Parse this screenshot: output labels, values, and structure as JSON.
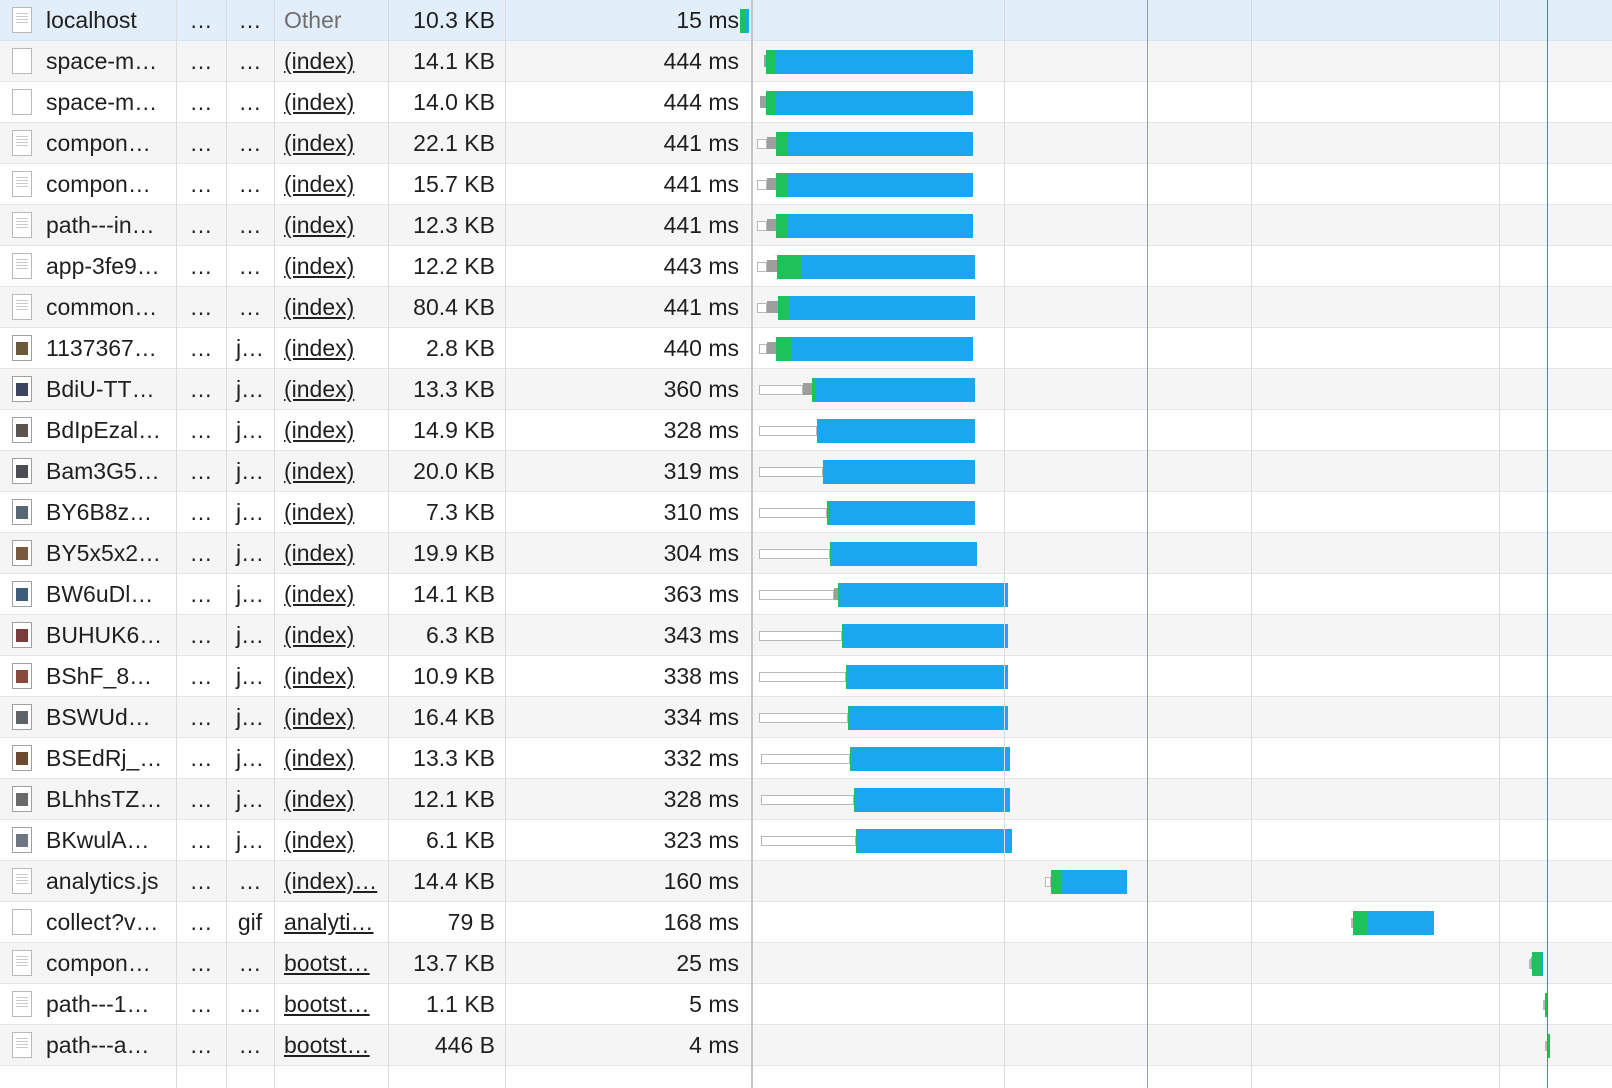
{
  "colors": {
    "waiting_ttfb": "#1fc15a",
    "content_download": "#1aa7ef",
    "stalled": "#9e9e9e",
    "queued_outline": "#b8b8b8",
    "dom_content_loaded_line": "#8f93f5",
    "load_line": "#e44a4a",
    "selected_row": "#e3eefb",
    "alt_row": "#f5f5f5"
  },
  "requests": [
    {
      "name": "localhost",
      "status": "…",
      "type": "…",
      "initiator": "Other",
      "initiator_link": false,
      "size": "10.3 KB",
      "time": "15 ms",
      "icon": "document-icon",
      "selected": true
    },
    {
      "name": "space-m…",
      "status": "…",
      "type": "…",
      "initiator": "(index)",
      "initiator_link": true,
      "size": "14.1 KB",
      "time": "444 ms",
      "icon": "blank-file-icon",
      "selected": false
    },
    {
      "name": "space-m…",
      "status": "…",
      "type": "…",
      "initiator": "(index)",
      "initiator_link": true,
      "size": "14.0 KB",
      "time": "444 ms",
      "icon": "blank-file-icon",
      "selected": false
    },
    {
      "name": "compon…",
      "status": "…",
      "type": "…",
      "initiator": "(index)",
      "initiator_link": true,
      "size": "22.1 KB",
      "time": "441 ms",
      "icon": "document-icon",
      "selected": false
    },
    {
      "name": "compon…",
      "status": "…",
      "type": "…",
      "initiator": "(index)",
      "initiator_link": true,
      "size": "15.7 KB",
      "time": "441 ms",
      "icon": "document-icon",
      "selected": false
    },
    {
      "name": "path---in…",
      "status": "…",
      "type": "…",
      "initiator": "(index)",
      "initiator_link": true,
      "size": "12.3 KB",
      "time": "441 ms",
      "icon": "document-icon",
      "selected": false
    },
    {
      "name": "app-3fe9…",
      "status": "…",
      "type": "…",
      "initiator": "(index)",
      "initiator_link": true,
      "size": "12.2 KB",
      "time": "443 ms",
      "icon": "document-icon",
      "selected": false
    },
    {
      "name": "common…",
      "status": "…",
      "type": "…",
      "initiator": "(index)",
      "initiator_link": true,
      "size": "80.4 KB",
      "time": "441 ms",
      "icon": "document-icon",
      "selected": false
    },
    {
      "name": "1137367…",
      "status": "…",
      "type": "j…",
      "initiator": "(index)",
      "initiator_link": true,
      "size": "2.8 KB",
      "time": "440 ms",
      "icon": "image-thumbnail-icon",
      "selected": false
    },
    {
      "name": "BdiU-TT…",
      "status": "…",
      "type": "j…",
      "initiator": "(index)",
      "initiator_link": true,
      "size": "13.3 KB",
      "time": "360 ms",
      "icon": "image-thumbnail-icon",
      "selected": false
    },
    {
      "name": "BdIpEzal…",
      "status": "…",
      "type": "j…",
      "initiator": "(index)",
      "initiator_link": true,
      "size": "14.9 KB",
      "time": "328 ms",
      "icon": "image-thumbnail-icon",
      "selected": false
    },
    {
      "name": "Bam3G5…",
      "status": "…",
      "type": "j…",
      "initiator": "(index)",
      "initiator_link": true,
      "size": "20.0 KB",
      "time": "319 ms",
      "icon": "image-thumbnail-icon",
      "selected": false
    },
    {
      "name": "BY6B8z…",
      "status": "…",
      "type": "j…",
      "initiator": "(index)",
      "initiator_link": true,
      "size": "7.3 KB",
      "time": "310 ms",
      "icon": "image-thumbnail-icon",
      "selected": false
    },
    {
      "name": "BY5x5x2…",
      "status": "…",
      "type": "j…",
      "initiator": "(index)",
      "initiator_link": true,
      "size": "19.9 KB",
      "time": "304 ms",
      "icon": "image-thumbnail-icon",
      "selected": false
    },
    {
      "name": "BW6uDl…",
      "status": "…",
      "type": "j…",
      "initiator": "(index)",
      "initiator_link": true,
      "size": "14.1 KB",
      "time": "363 ms",
      "icon": "image-thumbnail-icon",
      "selected": false
    },
    {
      "name": "BUHUK6…",
      "status": "…",
      "type": "j…",
      "initiator": "(index)",
      "initiator_link": true,
      "size": "6.3 KB",
      "time": "343 ms",
      "icon": "image-thumbnail-icon",
      "selected": false
    },
    {
      "name": "BShF_8…",
      "status": "…",
      "type": "j…",
      "initiator": "(index)",
      "initiator_link": true,
      "size": "10.9 KB",
      "time": "338 ms",
      "icon": "image-thumbnail-icon",
      "selected": false
    },
    {
      "name": "BSWUd…",
      "status": "…",
      "type": "j…",
      "initiator": "(index)",
      "initiator_link": true,
      "size": "16.4 KB",
      "time": "334 ms",
      "icon": "image-thumbnail-icon",
      "selected": false
    },
    {
      "name": "BSEdRj_…",
      "status": "…",
      "type": "j…",
      "initiator": "(index)",
      "initiator_link": true,
      "size": "13.3 KB",
      "time": "332 ms",
      "icon": "image-thumbnail-icon",
      "selected": false
    },
    {
      "name": "BLhhsTZ…",
      "status": "…",
      "type": "j…",
      "initiator": "(index)",
      "initiator_link": true,
      "size": "12.1 KB",
      "time": "328 ms",
      "icon": "image-thumbnail-icon",
      "selected": false
    },
    {
      "name": "BKwulA…",
      "status": "…",
      "type": "j…",
      "initiator": "(index)",
      "initiator_link": true,
      "size": "6.1 KB",
      "time": "323 ms",
      "icon": "image-thumbnail-icon",
      "selected": false
    },
    {
      "name": "analytics.js",
      "status": "…",
      "type": "…",
      "initiator": "(index)…",
      "initiator_link": true,
      "size": "14.4 KB",
      "time": "160 ms",
      "icon": "document-icon",
      "selected": false
    },
    {
      "name": "collect?v…",
      "status": "…",
      "type": "gif",
      "initiator": "analyti…",
      "initiator_link": true,
      "size": "79 B",
      "time": "168 ms",
      "icon": "blank-file-icon",
      "selected": false
    },
    {
      "name": "compon…",
      "status": "…",
      "type": "…",
      "initiator": "bootst…",
      "initiator_link": true,
      "size": "13.7 KB",
      "time": "25 ms",
      "icon": "document-icon",
      "selected": false
    },
    {
      "name": "path---1…",
      "status": "…",
      "type": "…",
      "initiator": "bootst…",
      "initiator_link": true,
      "size": "1.1 KB",
      "time": "5 ms",
      "icon": "document-icon",
      "selected": false
    },
    {
      "name": "path---a…",
      "status": "…",
      "type": "…",
      "initiator": "bootst…",
      "initiator_link": true,
      "size": "446 B",
      "time": "4 ms",
      "icon": "document-icon",
      "selected": false
    }
  ]
}
